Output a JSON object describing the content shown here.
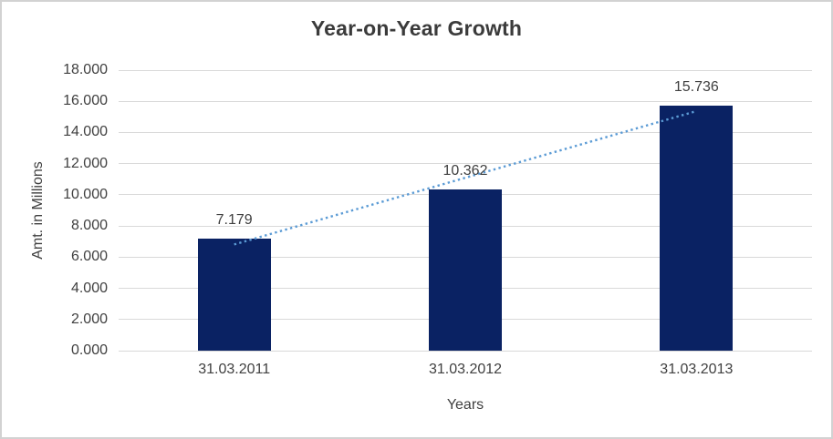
{
  "chart_data": {
    "type": "bar",
    "title": "Year-on-Year Growth",
    "categories": [
      "31.03.2011",
      "31.03.2012",
      "31.03.2013"
    ],
    "values": [
      7.179,
      10.362,
      15.736
    ],
    "data_labels": [
      "7.179",
      "10.362",
      "15.736"
    ],
    "xlabel": "Years",
    "ylabel": "Amt. in Millions",
    "ylim": [
      0,
      18
    ],
    "ytick_values": [
      0,
      2,
      4,
      6,
      8,
      10,
      12,
      14,
      16,
      18
    ],
    "ytick_labels": [
      "0.000",
      "2.000",
      "4.000",
      "6.000",
      "8.000",
      "10.000",
      "12.000",
      "14.000",
      "16.000",
      "18.000"
    ],
    "grid": true,
    "legend": "none",
    "bar_color": "#0a2263",
    "trendline": {
      "type": "linear",
      "style": "dotted",
      "color": "#5b9bd5"
    }
  },
  "colors": {
    "background": "#ffffff",
    "border": "#d2d2d2",
    "gridline": "#d9d9d9",
    "text": "#404040",
    "title_text": "#3b3b3b"
  }
}
